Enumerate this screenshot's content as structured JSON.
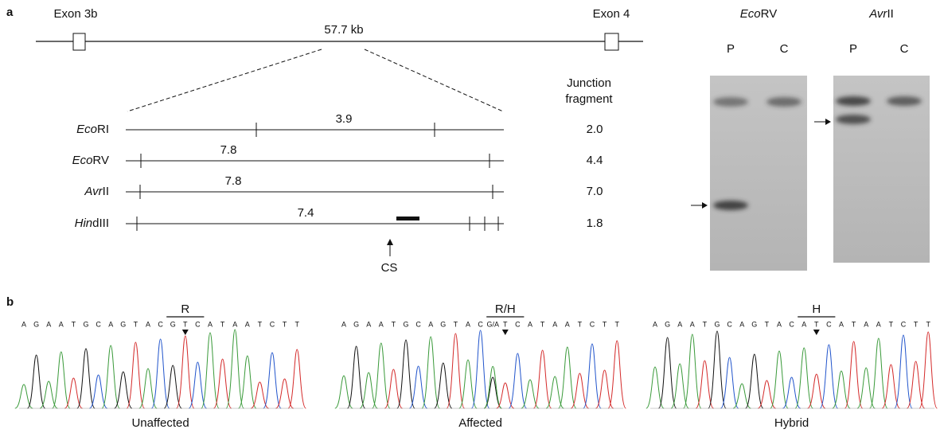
{
  "panel_a": {
    "label": "a",
    "exons": [
      "Exon 3b",
      "Exon 4"
    ],
    "span": "57.7 kb",
    "junction_header": [
      "Junction",
      "fragment"
    ],
    "rows": [
      {
        "enzyme": {
          "italic": "Eco",
          "plain": "RI"
        },
        "size": "3.9",
        "junction": "2.0"
      },
      {
        "enzyme": {
          "italic": "Eco",
          "plain": "RV"
        },
        "size": "7.8",
        "junction": "4.4"
      },
      {
        "enzyme": {
          "italic": "Avr",
          "plain": "II"
        },
        "size": "7.8",
        "junction": "7.0"
      },
      {
        "enzyme": {
          "italic": "Hin",
          "plain": "dIII"
        },
        "size": "7.4",
        "junction": "1.8"
      }
    ],
    "cs": "CS",
    "gels": [
      {
        "enzyme": {
          "italic": "Eco",
          "plain": "RV"
        },
        "lanes": [
          "P",
          "C"
        ]
      },
      {
        "enzyme": {
          "italic": "Avr",
          "plain": "II"
        },
        "lanes": [
          "P",
          "C"
        ]
      }
    ]
  },
  "panel_b": {
    "label": "b",
    "traces": [
      {
        "site": "R",
        "sequence": [
          "A",
          "G",
          "A",
          "A",
          "T",
          "G",
          "C",
          "A",
          "G",
          "T",
          "A",
          "C",
          "G",
          "T",
          "C",
          "A",
          "T",
          "A",
          "A",
          "T",
          "C",
          "T",
          "T"
        ],
        "caption": "Unaffected"
      },
      {
        "site": "R/H",
        "sequence": [
          "A",
          "G",
          "A",
          "A",
          "T",
          "G",
          "C",
          "A",
          "G",
          "T",
          "A",
          "C",
          "G/A",
          "T",
          "C",
          "A",
          "T",
          "A",
          "A",
          "T",
          "C",
          "T",
          "T"
        ],
        "caption": "Affected"
      },
      {
        "site": "H",
        "sequence": [
          "A",
          "G",
          "A",
          "A",
          "T",
          "G",
          "C",
          "A",
          "G",
          "T",
          "A",
          "C",
          "A",
          "T",
          "C",
          "A",
          "T",
          "A",
          "A",
          "T",
          "C",
          "T",
          "T"
        ],
        "caption": "Hybrid"
      }
    ]
  }
}
